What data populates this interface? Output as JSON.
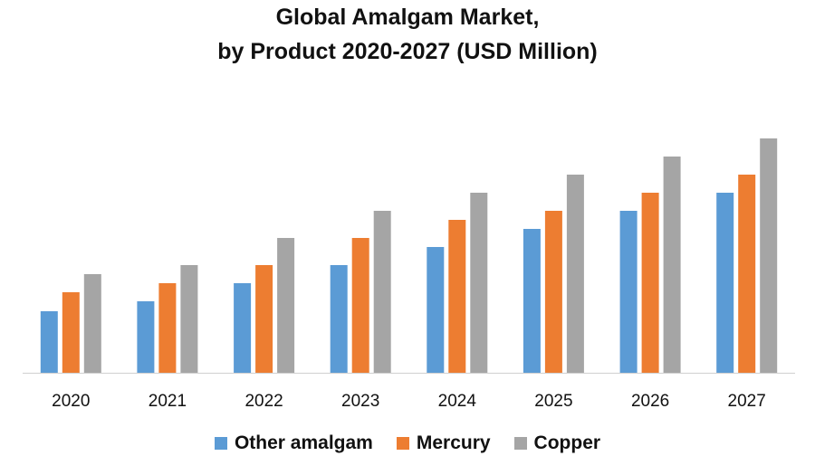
{
  "chart_data": {
    "type": "bar",
    "title_lines": [
      "Global Amalgam Market,",
      "by Product 2020-2027 (USD Million)"
    ],
    "categories": [
      "2020",
      "2021",
      "2022",
      "2023",
      "2024",
      "2025",
      "2026",
      "2027"
    ],
    "series": [
      {
        "name": "Other amalgam",
        "color": "#5b9bd5",
        "values": [
          68,
          79,
          99,
          119,
          139,
          159,
          179,
          199
        ]
      },
      {
        "name": "Mercury",
        "color": "#ed7d31",
        "values": [
          89,
          99,
          119,
          149,
          169,
          179,
          199,
          219
        ]
      },
      {
        "name": "Copper",
        "color": "#a5a5a5",
        "values": [
          109,
          119,
          149,
          179,
          199,
          219,
          239,
          259
        ]
      }
    ],
    "ylim": [
      0,
      300
    ],
    "grid": false,
    "legend_position": "bottom"
  }
}
